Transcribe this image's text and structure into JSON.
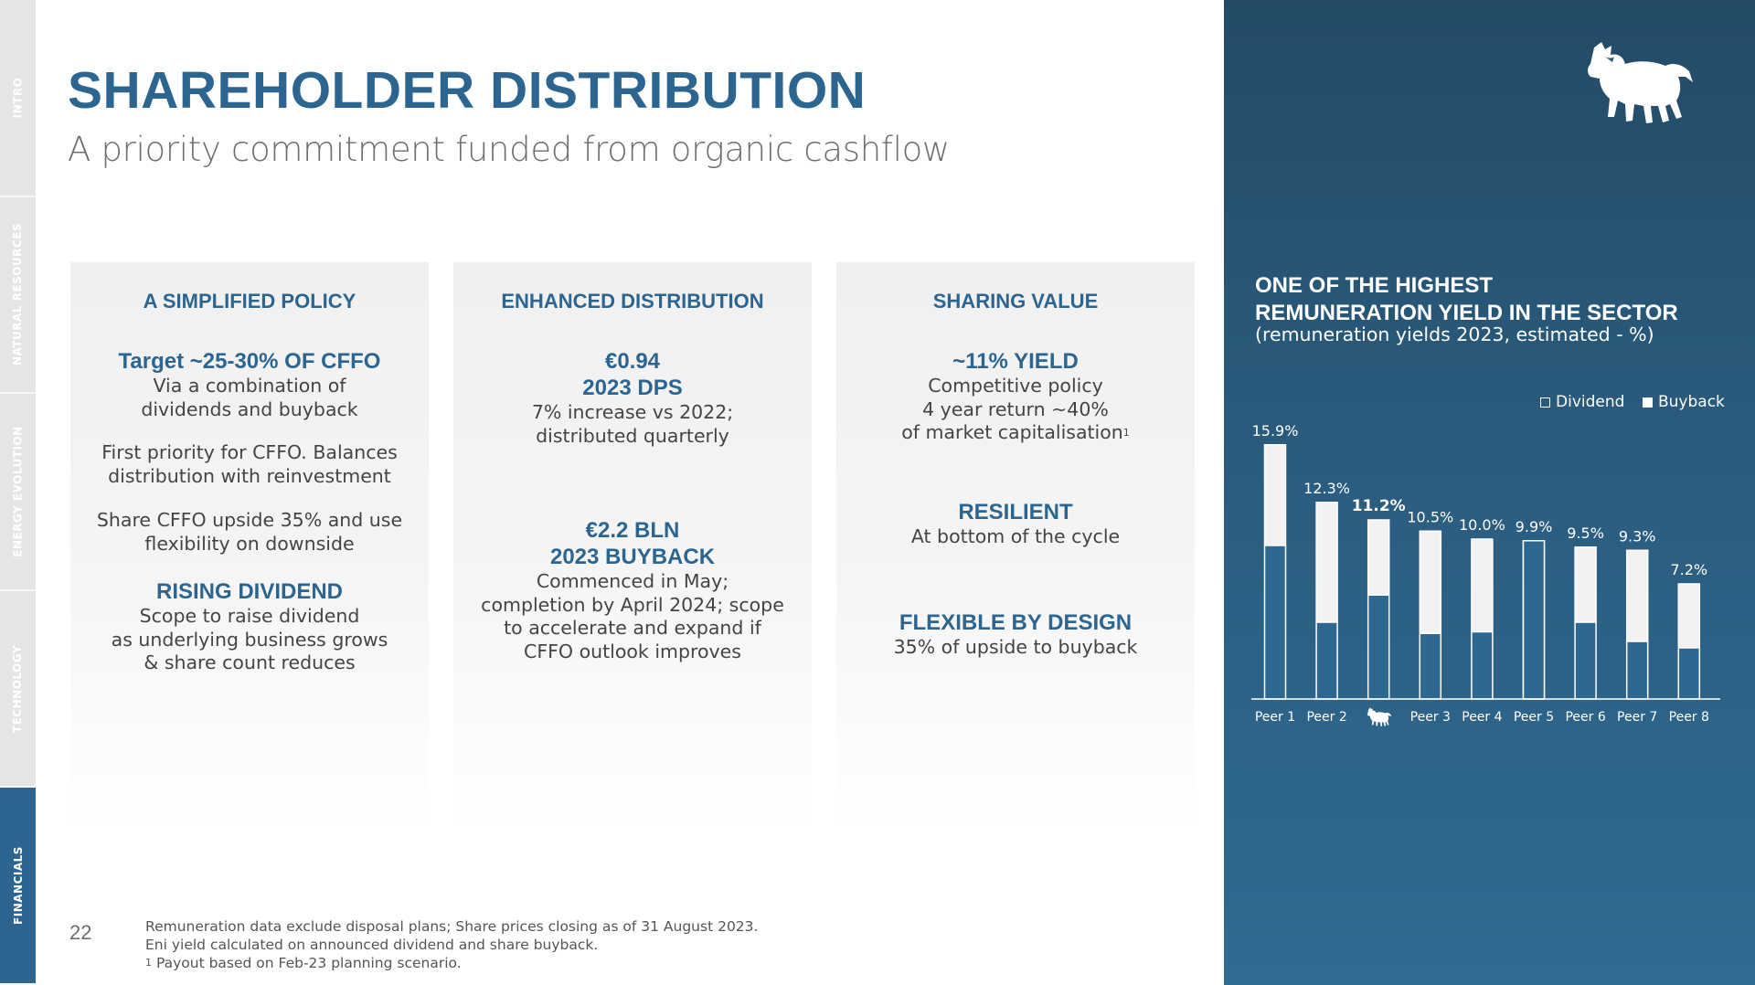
{
  "nav": {
    "tabs": [
      {
        "label": "INTRO"
      },
      {
        "label": "NATURAL RESOURCES"
      },
      {
        "label": "ENERGY EVOLUTION"
      },
      {
        "label": "TECHNOLOGY"
      },
      {
        "label": "FINANCIALS"
      }
    ]
  },
  "header": {
    "title": "SHAREHOLDER DISTRIBUTION",
    "subtitle": "A priority commitment funded from organic cashflow"
  },
  "cards": {
    "policy": {
      "heading": "A SIMPLIFIED POLICY",
      "b1_title": "Target ~25-30% OF CFFO",
      "b1_line1": "Via a combination of",
      "b1_line2": "dividends and buyback",
      "b2_line1": "First priority for CFFO. Balances",
      "b2_line2": "distribution with reinvestment",
      "b3_line1": "Share CFFO upside 35% and use",
      "b3_line2": "flexibility on downside",
      "b4_title": "RISING DIVIDEND",
      "b4_line1": "Scope to raise dividend",
      "b4_line2": "as underlying business grows",
      "b4_line3": "& share count reduces"
    },
    "distribution": {
      "heading": "ENHANCED DISTRIBUTION",
      "b1_title1": "€0.94",
      "b1_title2": "2023 DPS",
      "b1_line1": "7% increase vs 2022;",
      "b1_line2": "distributed quarterly",
      "b2_title1": "€2.2 BLN",
      "b2_title2": "2023 BUYBACK",
      "b2_line1": "Commenced in May;",
      "b2_line2": "completion by April 2024; scope",
      "b2_line3": "to accelerate and expand if",
      "b2_line4": "CFFO outlook improves"
    },
    "sharing": {
      "heading": "SHARING VALUE",
      "b1_title": "~11% YIELD",
      "b1_line1": "Competitive policy",
      "b1_line2": "4 year return ~40%",
      "b1_line3": "of market capitalisation",
      "b1_sup": "1",
      "b2_title": "RESILIENT",
      "b2_line1": "At bottom of the cycle",
      "b3_title": "FLEXIBLE BY DESIGN",
      "b3_line1": "35% of upside to buyback"
    }
  },
  "footer": {
    "page": "22",
    "note1": "Remuneration data exclude disposal plans; Share prices closing as of 31 August 2023.",
    "note2": "Eni yield calculated on announced dividend and share buyback.",
    "note3_sup": "1",
    "note3": "Payout based on Feb-23 planning scenario."
  },
  "panel": {
    "title_line1": "ONE OF THE HIGHEST",
    "title_line2": "REMUNERATION YIELD IN THE SECTOR",
    "subtitle": "(remuneration yields 2023, estimated - %)",
    "logo_icon": "eni-six-legged-dog-icon"
  },
  "chart_data": {
    "type": "bar",
    "stacked": true,
    "categories": [
      "Peer 1",
      "Peer 2",
      "Eni",
      "Peer 3",
      "Peer 4",
      "Peer 5",
      "Peer 6",
      "Peer 7",
      "Peer 8"
    ],
    "category_icons": {
      "Eni": "eni-six-legged-dog-icon"
    },
    "series": [
      {
        "name": "Buyback",
        "values": [
          9.6,
          4.8,
          6.5,
          4.1,
          4.2,
          0.0,
          4.8,
          3.6,
          3.2
        ]
      },
      {
        "name": "Dividend",
        "values": [
          6.3,
          7.5,
          4.7,
          6.4,
          5.8,
          9.9,
          4.7,
          5.7,
          4.0
        ]
      }
    ],
    "totals": [
      15.9,
      12.3,
      11.2,
      10.5,
      10.0,
      9.9,
      9.5,
      9.3,
      7.2
    ],
    "total_labels": [
      "15.9%",
      "12.3%",
      "11.2%",
      "10.5%",
      "10.0%",
      "9.9%",
      "9.5%",
      "9.3%",
      "7.2%"
    ],
    "highlight": "Eni",
    "ylim": [
      0,
      16
    ],
    "legend": {
      "position": "top-right",
      "labels": [
        "Dividend",
        "Buyback"
      ]
    },
    "colors": {
      "dividend": "#f2f2f2",
      "buyback": "#2e6890",
      "outline": "#ffffff"
    }
  }
}
